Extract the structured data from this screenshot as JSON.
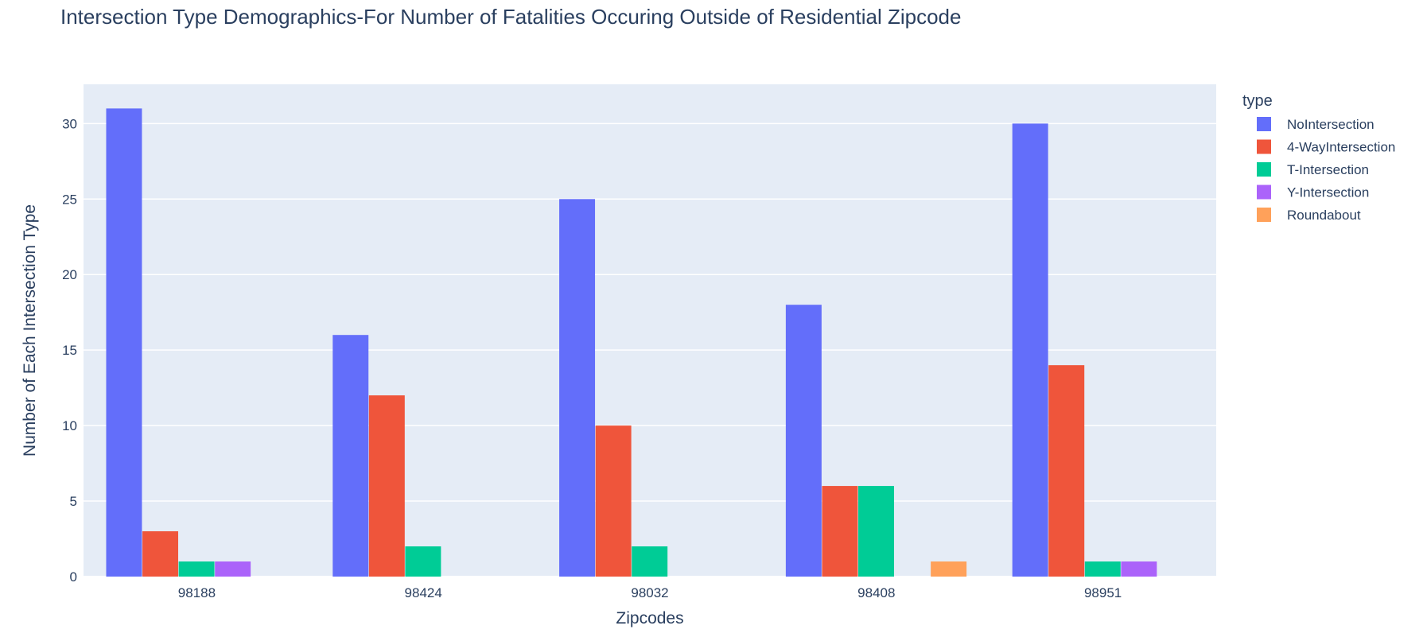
{
  "chart_data": {
    "type": "bar",
    "title": "Intersection Type Demographics-For Number of Fatalities Occuring Outside of Residential Zipcode",
    "xlabel": "Zipcodes",
    "ylabel": "Number of Each Intersection Type",
    "categories": [
      "98188",
      "98424",
      "98032",
      "98408",
      "98951"
    ],
    "ylim": [
      0,
      32.6
    ],
    "yticks": [
      0,
      5,
      10,
      15,
      20,
      25,
      30
    ],
    "grid": true,
    "legend_title": "type",
    "legend_position": "right",
    "series": [
      {
        "name": "NoIntersection",
        "color": "#636efa",
        "values": [
          31,
          16,
          25,
          18,
          30
        ]
      },
      {
        "name": "4-WayIntersection",
        "color": "#ef553b",
        "values": [
          3,
          12,
          10,
          6,
          14
        ]
      },
      {
        "name": "T-Intersection",
        "color": "#00cc96",
        "values": [
          1,
          2,
          2,
          6,
          1
        ]
      },
      {
        "name": "Y-Intersection",
        "color": "#ab63fa",
        "values": [
          1,
          null,
          null,
          null,
          1
        ]
      },
      {
        "name": "Roundabout",
        "color": "#ffa15a",
        "values": [
          null,
          null,
          null,
          1,
          null
        ]
      }
    ]
  }
}
